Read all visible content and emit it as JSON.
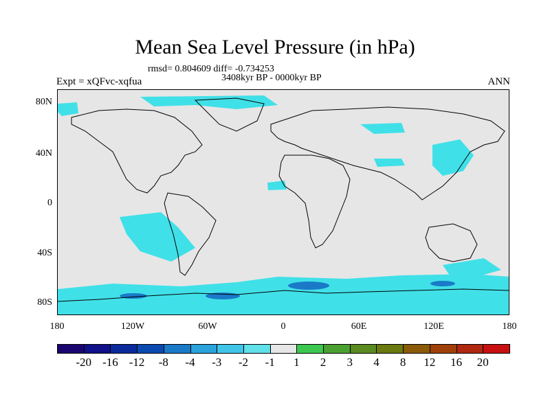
{
  "title": "Mean Sea Level Pressure (in hPa)",
  "subtitle_stats": "rmsd= 0.804609 diff= -0.734253",
  "subtitle_period": "3408kyr BP - 0000kyr BP",
  "expt_label": "Expt = xQFvc-xqfua",
  "season_label": "ANN",
  "lat_labels": [
    "80N",
    "40N",
    "0",
    "40S",
    "80S"
  ],
  "lon_labels": [
    "180",
    "120W",
    "60W",
    "0",
    "60E",
    "120E",
    "180"
  ],
  "colorbar": {
    "colors": [
      "#1a0570",
      "#10108a",
      "#0a2a9c",
      "#0a4ab0",
      "#1a7ac8",
      "#2aa2dc",
      "#40c4e8",
      "#60e0e8",
      "#e6e6e6",
      "#3cc850",
      "#4aa030",
      "#5a8a20",
      "#6a7a10",
      "#8a5a08",
      "#a04008",
      "#b02810",
      "#c81010"
    ],
    "labels": [
      "-20",
      "-16",
      "-12",
      "-8",
      "-4",
      "-3",
      "-2",
      "-1",
      "1",
      "2",
      "3",
      "4",
      "8",
      "12",
      "16",
      "20"
    ]
  },
  "legend_colors": {
    "land_outline": "#000000",
    "no_change": "#e6e6e6",
    "negative_anomaly": "#40e0e8",
    "strong_negative": "#1a7ac8"
  }
}
